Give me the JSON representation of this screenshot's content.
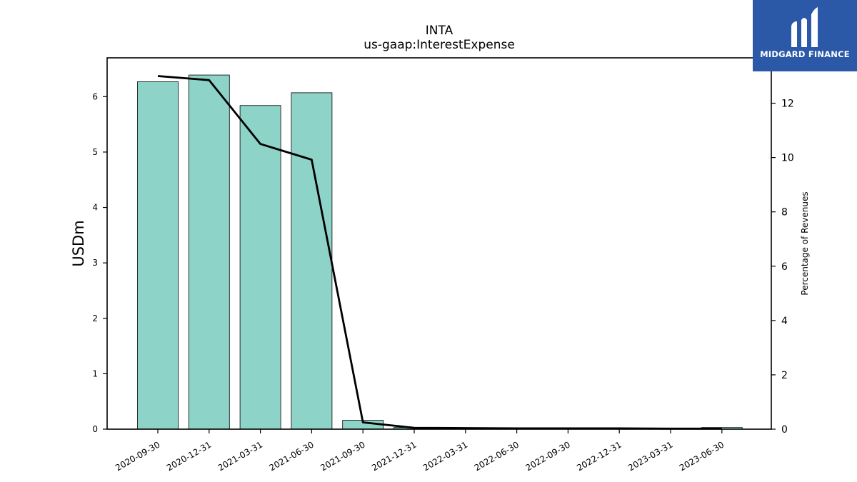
{
  "chart_data": {
    "type": "bar",
    "title": "INTA",
    "subtitle": "us-gaap:InterestExpense",
    "ylabel": "USDm",
    "ylabel_right": "Percentage of Revenues",
    "categories": [
      "2020-09-30",
      "2020-12-31",
      "2021-03-31",
      "2021-06-30",
      "2021-09-30",
      "2021-12-31",
      "2022-03-31",
      "2022-06-30",
      "2022-09-30",
      "2022-12-31",
      "2023-03-31",
      "2023-06-30"
    ],
    "series": [
      {
        "values": [
          6.27,
          6.39,
          5.84,
          6.07,
          0.16,
          0.03,
          0.02,
          0.02,
          0.02,
          0.02,
          0.02,
          0.03
        ]
      },
      {
        "values": [
          13.0,
          12.85,
          10.5,
          9.92,
          0.25,
          0.05,
          0.04,
          0.03,
          0.03,
          0.03,
          0.02,
          0.02
        ]
      }
    ],
    "ylim": [
      0,
      6.7
    ],
    "ylim_right": [
      0,
      13.67
    ],
    "yticks": [
      0,
      1,
      2,
      3,
      4,
      5,
      6
    ],
    "yticks_right": [
      0,
      2,
      4,
      6,
      8,
      10,
      12
    ],
    "bar_color": "#8dd3c7",
    "line_color": "#000000"
  },
  "logo": {
    "text": "MIDGARD FINANCE",
    "color": "#2b59a8"
  }
}
